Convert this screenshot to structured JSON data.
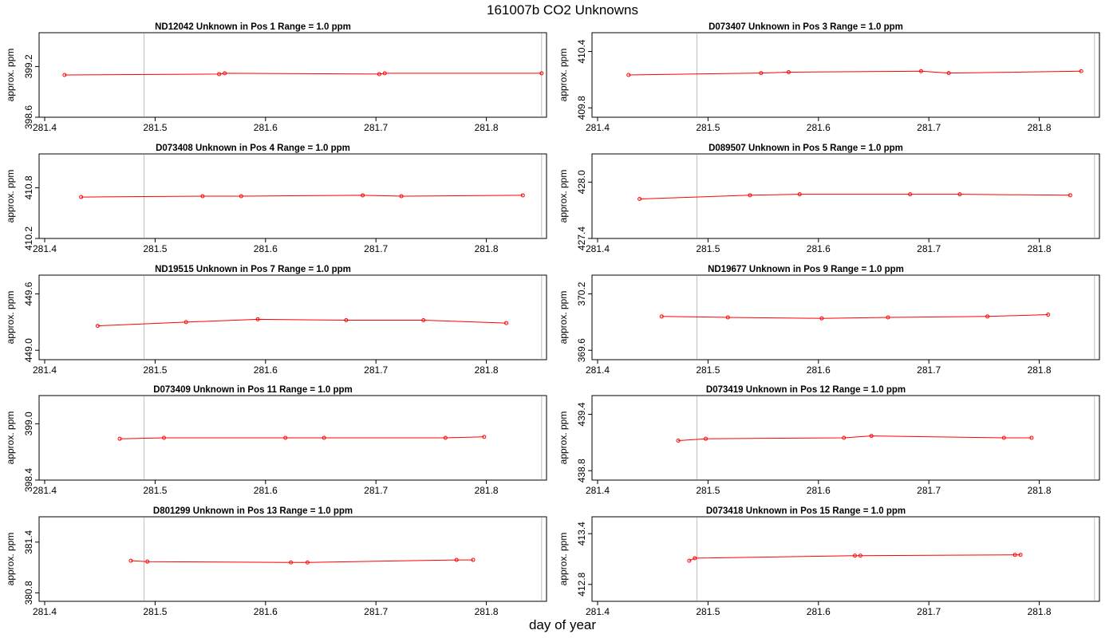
{
  "page": {
    "title": "161007b  CO2 Unknowns",
    "xlabel": "day of year"
  },
  "colors": {
    "series": "#ff0000",
    "vline": "#bebebe",
    "axis": "#000000"
  },
  "chart_data": [
    {
      "type": "line",
      "title": "ND12042    Unknown in Pos 1         Range = 1.0 ppm",
      "ylabel": "approx. ppm",
      "xlim": [
        281.4,
        281.85
      ],
      "ylim": [
        398.6,
        399.6
      ],
      "xticks": [
        "281.4",
        "281.5",
        "281.6",
        "281.7",
        "281.8"
      ],
      "yticks": [
        "398.6",
        "399.2"
      ],
      "ytick_values": [
        398.6,
        399.2
      ],
      "vlines": [
        281.49,
        281.85
      ],
      "x": [
        281.418,
        281.558,
        281.563,
        281.703,
        281.708,
        281.85
      ],
      "y": [
        399.1,
        399.11,
        399.12,
        399.11,
        399.12,
        399.12
      ]
    },
    {
      "type": "line",
      "title": "D073407    Unknown in Pos 3         Range = 1.0 ppm",
      "ylabel": "approx. ppm",
      "xlim": [
        281.4,
        281.85
      ],
      "ylim": [
        409.7,
        410.6
      ],
      "xticks": [
        "281.4",
        "281.5",
        "281.6",
        "281.7",
        "281.8"
      ],
      "yticks": [
        "409.8",
        "410.4"
      ],
      "ytick_values": [
        409.8,
        410.4
      ],
      "vlines": [
        281.49,
        281.85
      ],
      "x": [
        281.428,
        281.548,
        281.573,
        281.693,
        281.718,
        281.838
      ],
      "y": [
        410.15,
        410.17,
        410.18,
        410.19,
        410.17,
        410.19
      ]
    },
    {
      "type": "line",
      "title": "D073408    Unknown in Pos 4         Range = 1.0 ppm",
      "ylabel": "approx. ppm",
      "xlim": [
        281.4,
        281.85
      ],
      "ylim": [
        410.2,
        411.2
      ],
      "xticks": [
        "281.4",
        "281.5",
        "281.6",
        "281.7",
        "281.8"
      ],
      "yticks": [
        "410.2",
        "410.8"
      ],
      "ytick_values": [
        410.2,
        410.8
      ],
      "vlines": [
        281.49,
        281.85
      ],
      "x": [
        281.433,
        281.543,
        281.578,
        281.688,
        281.723,
        281.833
      ],
      "y": [
        410.69,
        410.7,
        410.7,
        410.71,
        410.7,
        410.71
      ]
    },
    {
      "type": "line",
      "title": "D089507    Unknown in Pos 5         Range = 1.0 ppm",
      "ylabel": "approx. ppm",
      "xlim": [
        281.4,
        281.85
      ],
      "ylim": [
        427.4,
        428.3
      ],
      "xticks": [
        "281.4",
        "281.5",
        "281.6",
        "281.7",
        "281.8"
      ],
      "yticks": [
        "427.4",
        "428.0"
      ],
      "ytick_values": [
        427.4,
        428.0
      ],
      "vlines": [
        281.49,
        281.85
      ],
      "x": [
        281.438,
        281.538,
        281.583,
        281.683,
        281.728,
        281.828
      ],
      "y": [
        427.82,
        427.86,
        427.87,
        427.87,
        427.87,
        427.86
      ]
    },
    {
      "type": "line",
      "title": "ND19515    Unknown in Pos 7         Range = 1.0 ppm",
      "ylabel": "approx. ppm",
      "xlim": [
        281.4,
        281.85
      ],
      "ylim": [
        448.9,
        449.8
      ],
      "xticks": [
        "281.4",
        "281.5",
        "281.6",
        "281.7",
        "281.8"
      ],
      "yticks": [
        "449.0",
        "449.6"
      ],
      "ytick_values": [
        449.0,
        449.6
      ],
      "vlines": [
        281.49,
        281.85
      ],
      "x": [
        281.448,
        281.528,
        281.593,
        281.673,
        281.743,
        281.818
      ],
      "y": [
        449.26,
        449.3,
        449.33,
        449.32,
        449.32,
        449.29
      ]
    },
    {
      "type": "line",
      "title": "ND19677    Unknown in Pos 9         Range = 1.0 ppm",
      "ylabel": "approx. ppm",
      "xlim": [
        281.4,
        281.85
      ],
      "ylim": [
        369.5,
        370.4
      ],
      "xticks": [
        "281.4",
        "281.5",
        "281.6",
        "281.7",
        "281.8"
      ],
      "yticks": [
        "369.6",
        "370.2"
      ],
      "ytick_values": [
        369.6,
        370.2
      ],
      "vlines": [
        281.49,
        281.85
      ],
      "x": [
        281.458,
        281.518,
        281.603,
        281.663,
        281.753,
        281.808
      ],
      "y": [
        369.96,
        369.95,
        369.94,
        369.95,
        369.96,
        369.98
      ]
    },
    {
      "type": "line",
      "title": "D073409    Unknown in Pos 11         Range = 1.0 ppm",
      "ylabel": "approx. ppm",
      "xlim": [
        281.4,
        281.85
      ],
      "ylim": [
        398.4,
        399.3
      ],
      "xticks": [
        "281.4",
        "281.5",
        "281.6",
        "281.7",
        "281.8"
      ],
      "yticks": [
        "398.4",
        "399.0"
      ],
      "ytick_values": [
        398.4,
        399.0
      ],
      "vlines": [
        281.49,
        281.85
      ],
      "x": [
        281.468,
        281.508,
        281.618,
        281.653,
        281.763,
        281.798
      ],
      "y": [
        398.84,
        398.85,
        398.85,
        398.85,
        398.85,
        398.86
      ]
    },
    {
      "type": "line",
      "title": "D073419    Unknown in Pos 12         Range = 1.0 ppm",
      "ylabel": "approx. ppm",
      "xlim": [
        281.4,
        281.85
      ],
      "ylim": [
        438.7,
        439.6
      ],
      "xticks": [
        "281.4",
        "281.5",
        "281.6",
        "281.7",
        "281.8"
      ],
      "yticks": [
        "438.8",
        "439.4"
      ],
      "ytick_values": [
        438.8,
        439.4
      ],
      "vlines": [
        281.49,
        281.85
      ],
      "x": [
        281.473,
        281.498,
        281.623,
        281.648,
        281.768,
        281.793
      ],
      "y": [
        439.12,
        439.14,
        439.15,
        439.17,
        439.15,
        439.15
      ]
    },
    {
      "type": "line",
      "title": "D801299    Unknown in Pos 13         Range = 1.0 ppm",
      "ylabel": "approx. ppm",
      "xlim": [
        281.4,
        281.85
      ],
      "ylim": [
        380.7,
        381.7
      ],
      "xticks": [
        "281.4",
        "281.5",
        "281.6",
        "281.7",
        "281.8"
      ],
      "yticks": [
        "380.8",
        "381.4"
      ],
      "ytick_values": [
        380.8,
        381.4
      ],
      "vlines": [
        281.49,
        281.85
      ],
      "x": [
        281.478,
        281.493,
        281.623,
        281.638,
        281.773,
        281.788
      ],
      "y": [
        381.18,
        381.17,
        381.16,
        381.16,
        381.19,
        381.19
      ]
    },
    {
      "type": "line",
      "title": "D073418    Unknown in Pos 15         Range = 1.0 ppm",
      "ylabel": "approx. ppm",
      "xlim": [
        281.4,
        281.85
      ],
      "ylim": [
        412.6,
        413.6
      ],
      "xticks": [
        "281.4",
        "281.5",
        "281.6",
        "281.7",
        "281.8"
      ],
      "yticks": [
        "412.8",
        "413.4"
      ],
      "ytick_values": [
        412.8,
        413.4
      ],
      "vlines": [
        281.49,
        281.85
      ],
      "x": [
        281.483,
        281.488,
        281.633,
        281.638,
        281.778,
        281.783
      ],
      "y": [
        413.08,
        413.11,
        413.14,
        413.14,
        413.15,
        413.15
      ]
    }
  ]
}
